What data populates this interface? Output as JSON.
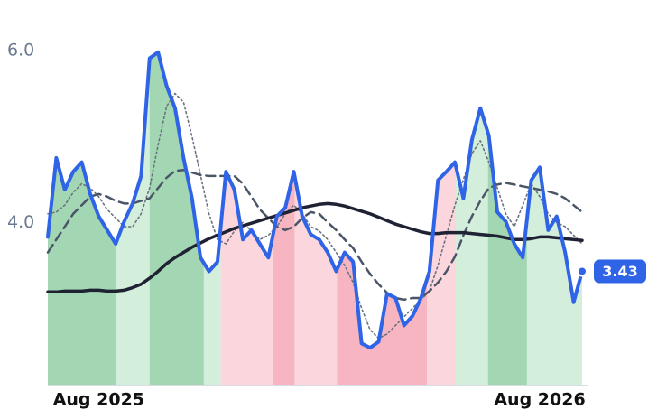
{
  "chart_data": {
    "type": "line",
    "x": [
      -6,
      -5,
      -4,
      -3,
      -2,
      -1,
      0,
      1,
      2,
      3,
      4,
      5,
      6,
      7,
      8,
      9,
      10,
      11,
      12,
      13,
      14,
      15,
      16,
      17,
      18,
      19,
      20,
      21,
      22,
      23,
      24,
      25,
      26,
      27,
      28,
      29,
      30,
      31,
      32,
      33,
      34,
      35,
      36,
      37,
      38,
      39,
      40,
      41,
      42,
      43,
      44,
      45,
      46,
      47,
      48,
      49,
      50,
      51,
      52,
      53,
      54,
      55,
      56,
      57
    ],
    "xlim": [
      -6,
      57
    ],
    "xticks": [
      {
        "value": 0,
        "label": "Aug 2025"
      },
      {
        "value": 52,
        "label": "Aug 2026"
      }
    ],
    "ylim": [
      2.1,
      6.0
    ],
    "yticks": [
      {
        "value": 6,
        "label": "6.0"
      },
      {
        "value": 4,
        "label": "4.0"
      }
    ],
    "grid": false,
    "bands": [
      {
        "from": -6,
        "to": 2,
        "color": "#a3d7b3"
      },
      {
        "from": 2,
        "to": 6,
        "color": "#d3eedb"
      },
      {
        "from": 6,
        "to": 12.4,
        "color": "#a3d7b3"
      },
      {
        "from": 12.4,
        "to": 14.4,
        "color": "#d3eedb"
      },
      {
        "from": 14.4,
        "to": 20.6,
        "color": "#fbd6dd"
      },
      {
        "from": 20.6,
        "to": 23.1,
        "color": "#f7b4c1"
      },
      {
        "from": 23.1,
        "to": 28.1,
        "color": "#fbd6dd"
      },
      {
        "from": 28.1,
        "to": 38.7,
        "color": "#f7b4c1"
      },
      {
        "from": 38.7,
        "to": 42.1,
        "color": "#fbd6dd"
      },
      {
        "from": 42.1,
        "to": 45.9,
        "color": "#d3eedb"
      },
      {
        "from": 45.9,
        "to": 50.5,
        "color": "#a3d7b3"
      },
      {
        "from": 50.5,
        "to": 57,
        "color": "#d3eedb"
      }
    ],
    "series": [
      {
        "color": "#2f64e6",
        "style": "solid",
        "width": 4,
        "values": [
          3.83,
          4.75,
          4.38,
          4.59,
          4.7,
          4.33,
          4.07,
          3.91,
          3.75,
          4.01,
          4.22,
          4.54,
          5.91,
          5.98,
          5.59,
          5.33,
          4.75,
          4.28,
          3.59,
          3.43,
          3.54,
          4.59,
          4.38,
          3.8,
          3.91,
          3.75,
          3.59,
          4.07,
          4.17,
          4.59,
          4.07,
          3.86,
          3.8,
          3.65,
          3.43,
          3.65,
          3.54,
          2.59,
          2.54,
          2.61,
          3.17,
          3.12,
          2.8,
          2.91,
          3.12,
          3.43,
          4.49,
          4.59,
          4.7,
          4.28,
          4.96,
          5.33,
          5.01,
          4.12,
          4.01,
          3.75,
          3.59,
          4.49,
          4.64,
          3.91,
          4.07,
          3.65,
          3.07,
          3.43
        ]
      },
      {
        "color": "#1f2233",
        "style": "solid",
        "width": 3.5,
        "values": [
          3.19,
          3.19,
          3.2,
          3.2,
          3.2,
          3.21,
          3.21,
          3.2,
          3.2,
          3.21,
          3.24,
          3.28,
          3.35,
          3.43,
          3.52,
          3.59,
          3.65,
          3.71,
          3.76,
          3.81,
          3.85,
          3.89,
          3.93,
          3.96,
          3.99,
          4.02,
          4.05,
          4.08,
          4.11,
          4.14,
          4.17,
          4.19,
          4.21,
          4.22,
          4.21,
          4.19,
          4.16,
          4.13,
          4.1,
          4.06,
          4.02,
          3.98,
          3.95,
          3.92,
          3.89,
          3.87,
          3.87,
          3.88,
          3.88,
          3.88,
          3.87,
          3.86,
          3.85,
          3.84,
          3.82,
          3.8,
          3.8,
          3.81,
          3.83,
          3.83,
          3.82,
          3.81,
          3.8,
          3.79
        ]
      },
      {
        "color": "#4a5568",
        "style": "dashed",
        "width": 2.5,
        "values": [
          3.65,
          3.8,
          3.95,
          4.1,
          4.2,
          4.3,
          4.33,
          4.3,
          4.25,
          4.22,
          4.22,
          4.25,
          4.28,
          4.4,
          4.52,
          4.6,
          4.61,
          4.58,
          4.55,
          4.54,
          4.54,
          4.54,
          4.54,
          4.45,
          4.3,
          4.15,
          4.05,
          3.95,
          3.91,
          3.95,
          4.05,
          4.12,
          4.1,
          4.0,
          3.91,
          3.8,
          3.7,
          3.54,
          3.4,
          3.28,
          3.18,
          3.12,
          3.1,
          3.12,
          3.12,
          3.2,
          3.3,
          3.43,
          3.6,
          3.85,
          4.07,
          4.25,
          4.4,
          4.44,
          4.46,
          4.44,
          4.42,
          4.4,
          4.38,
          4.36,
          4.33,
          4.28,
          4.2,
          4.12
        ]
      },
      {
        "color": "#6b7280",
        "style": "dotted",
        "width": 1.6,
        "values": [
          4.1,
          4.12,
          4.2,
          4.35,
          4.45,
          4.4,
          4.3,
          4.15,
          4.05,
          3.95,
          3.95,
          4.1,
          4.4,
          4.9,
          5.35,
          5.5,
          5.4,
          5.0,
          4.55,
          4.1,
          3.8,
          3.75,
          3.9,
          4.0,
          3.9,
          3.8,
          3.85,
          3.95,
          4.1,
          4.2,
          4.1,
          3.95,
          3.9,
          3.8,
          3.65,
          3.5,
          3.3,
          3.0,
          2.75,
          2.65,
          2.7,
          2.8,
          2.9,
          3.0,
          3.1,
          3.2,
          3.5,
          3.85,
          4.2,
          4.5,
          4.8,
          4.95,
          4.7,
          4.4,
          4.1,
          3.95,
          4.2,
          4.45,
          4.3,
          4.1,
          4.0,
          3.95,
          3.85,
          3.75
        ]
      }
    ]
  }
}
